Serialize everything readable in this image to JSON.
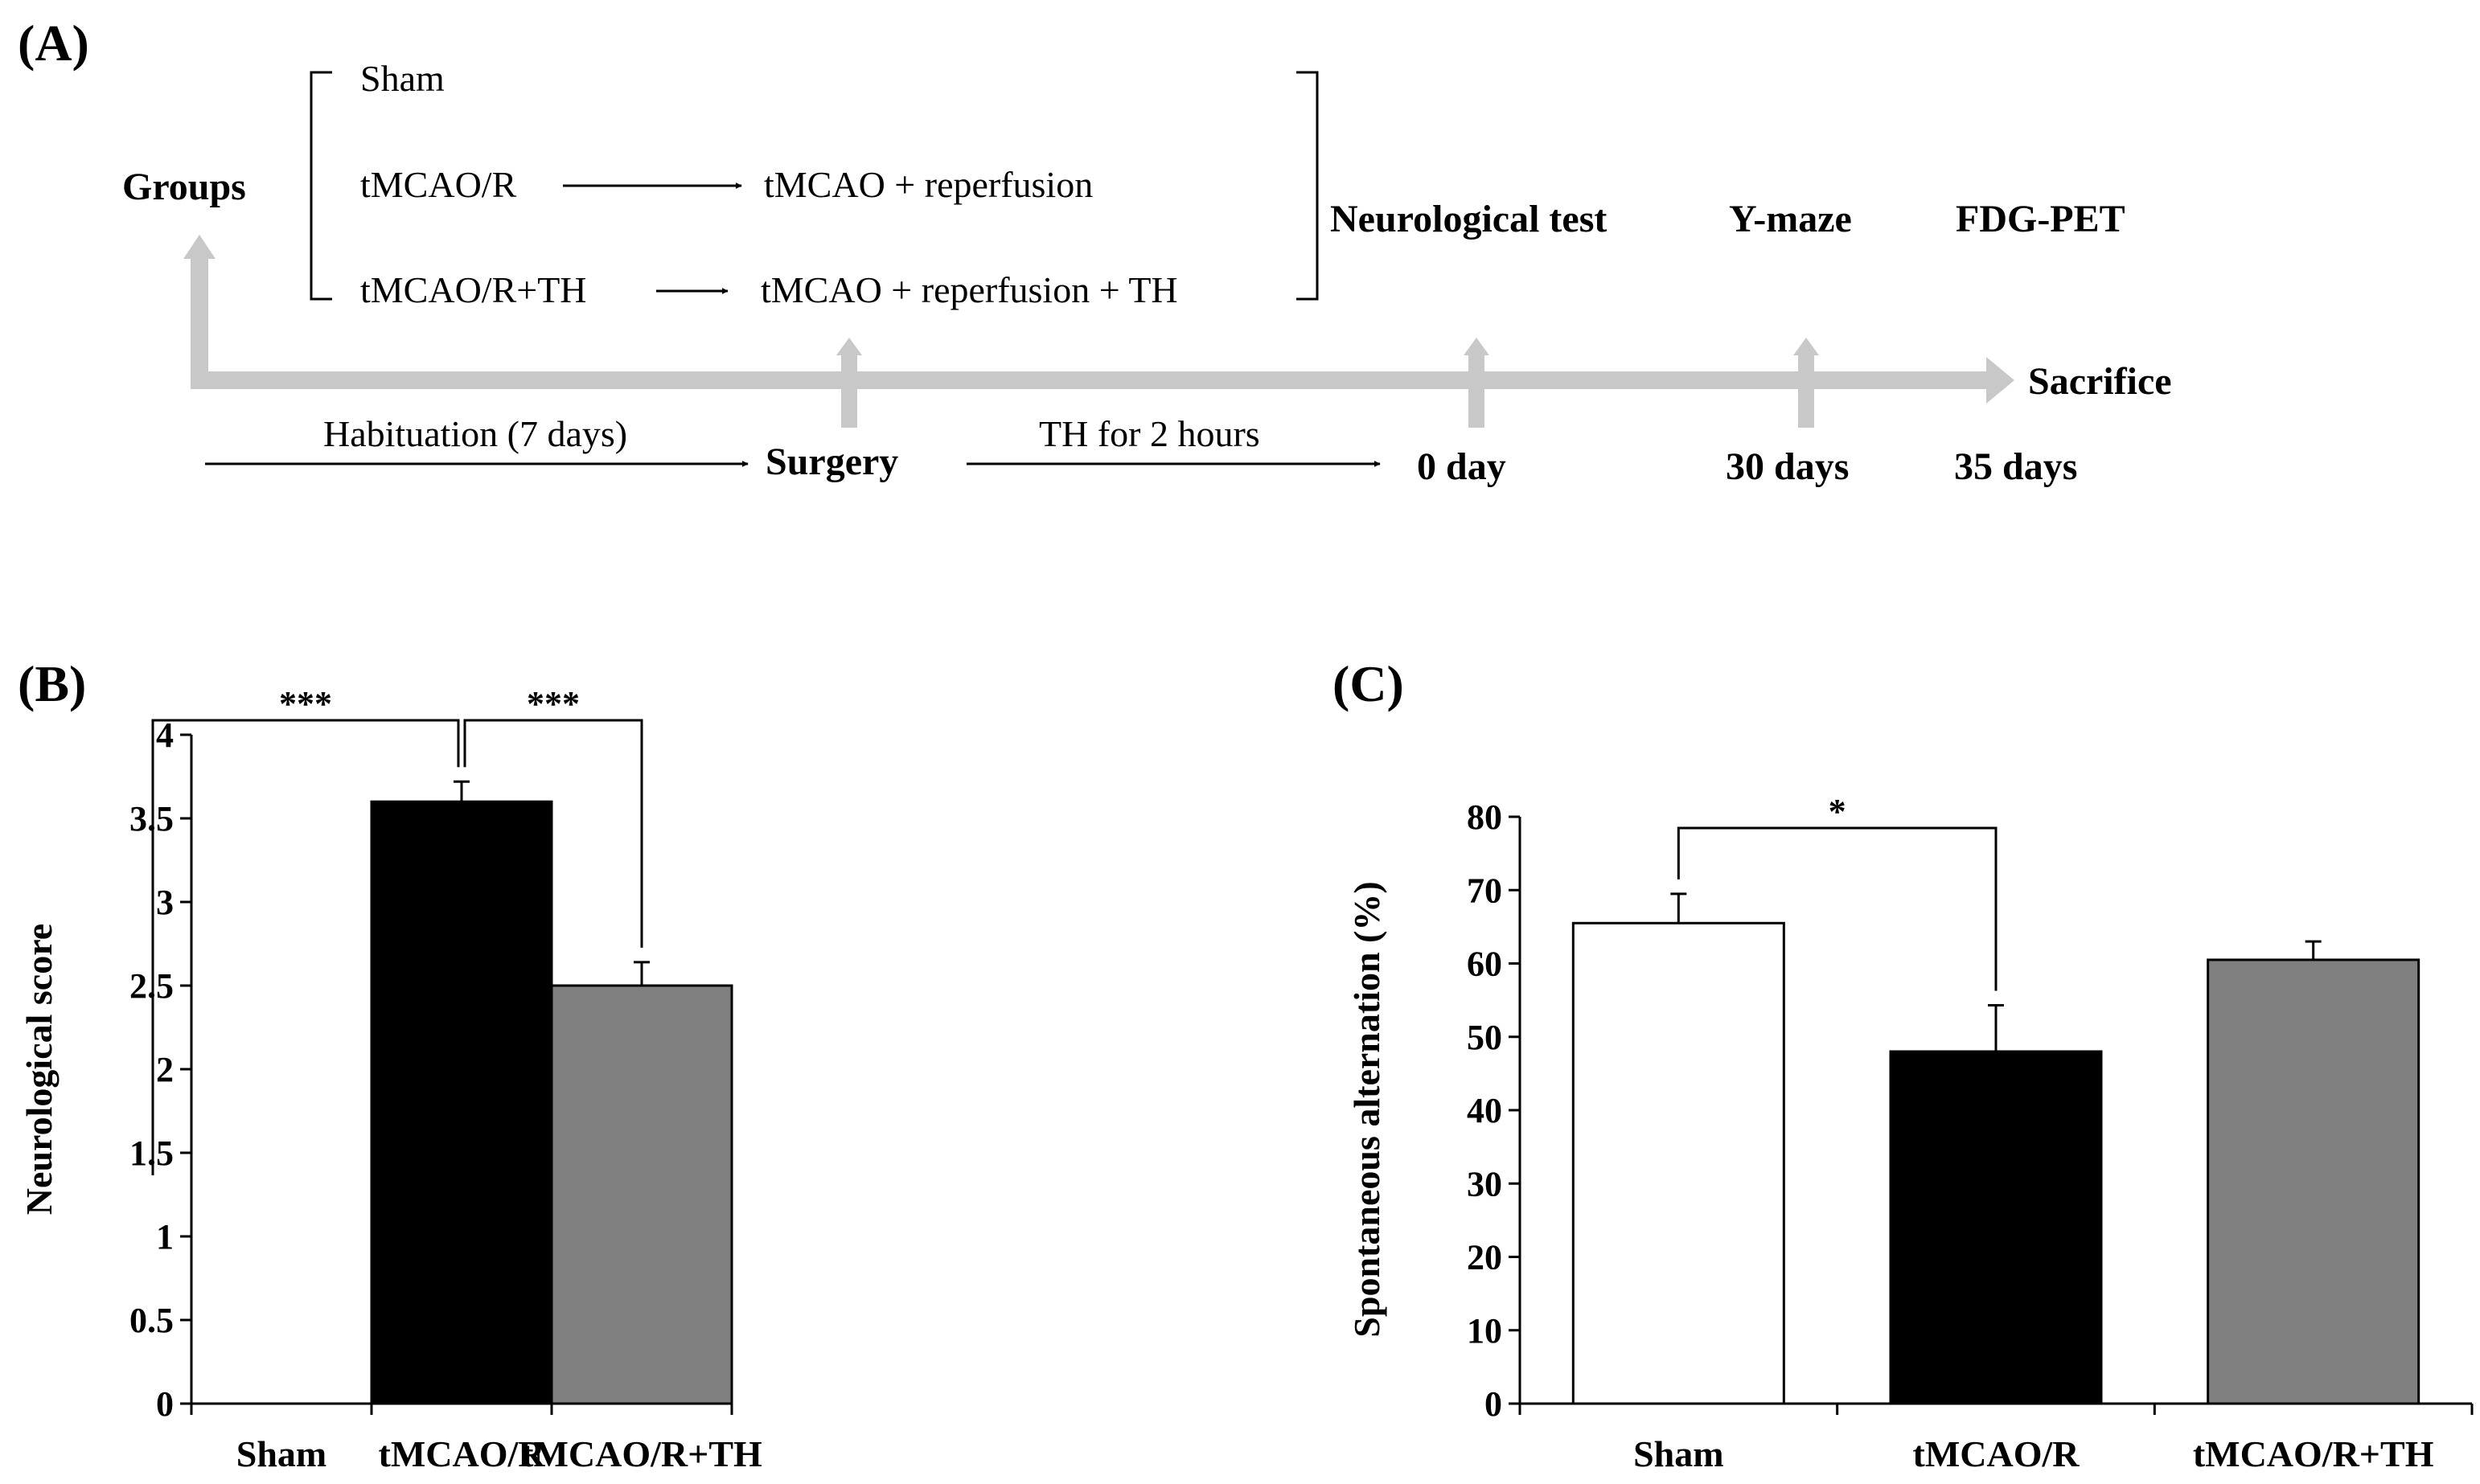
{
  "panel_a": {
    "label": "(A)",
    "groups_label": "Groups",
    "groups": {
      "sham": "Sham",
      "tmcao_r": "tMCAO/R",
      "tmcao_r_th": "tMCAO/R+TH"
    },
    "procedures": {
      "tmcao_r": "tMCAO + reperfusion",
      "tmcao_r_th": "tMCAO + reperfusion  + TH"
    },
    "events": {
      "neurological_test": "Neurological  test",
      "y_maze": "Y-maze",
      "fdg_pet": "FDG-PET",
      "sacrifice": "Sacrifice"
    },
    "phases": {
      "habituation": "Habituation  (7 days)",
      "th": "TH for 2 hours"
    },
    "timeline": {
      "surgery": "Surgery",
      "day0": "0 day",
      "day30": "30 days",
      "day35": "35 days"
    },
    "colors": {
      "timeline_arrow": "#c8c8c8"
    }
  },
  "chart_data": [
    {
      "panel": "(B)",
      "type": "bar",
      "title": "",
      "xlabel": "",
      "ylabel": "Neurological  score",
      "categories": [
        "Sham",
        "tMCAO/R",
        "tMCAO/R+TH"
      ],
      "values": [
        0,
        3.6,
        2.5
      ],
      "errors": [
        0,
        0.12,
        0.14
      ],
      "bar_colors": [
        "#ffffff",
        "#000000",
        "#808080"
      ],
      "ylim": [
        0,
        4
      ],
      "yticks": [
        0,
        0.5,
        1,
        1.5,
        2,
        2.5,
        3,
        3.5,
        4
      ],
      "ytick_labels": [
        "0",
        "0.5",
        "1",
        "1.5",
        "2",
        "2.5",
        "3",
        "3.5",
        "4"
      ],
      "grid": false,
      "significance": [
        {
          "from": 0,
          "to": 1,
          "label": "***"
        },
        {
          "from": 1,
          "to": 2,
          "label": "***"
        }
      ]
    },
    {
      "panel": "(C)",
      "type": "bar",
      "title": "",
      "xlabel": "",
      "ylabel": "Spontaneous  alternation  (%)",
      "categories": [
        "Sham",
        "tMCAO/R",
        "tMCAO/R+TH"
      ],
      "values": [
        65.5,
        48,
        60.5
      ],
      "errors": [
        4,
        6.3,
        2.5
      ],
      "bar_colors": [
        "#ffffff",
        "#000000",
        "#808080"
      ],
      "ylim": [
        0,
        80
      ],
      "yticks": [
        0,
        10,
        20,
        30,
        40,
        50,
        60,
        70,
        80
      ],
      "ytick_labels": [
        "0",
        "10",
        "20",
        "30",
        "40",
        "50",
        "60",
        "70",
        "80"
      ],
      "grid": false,
      "significance": [
        {
          "from": 0,
          "to": 1,
          "label": "*"
        }
      ]
    }
  ]
}
